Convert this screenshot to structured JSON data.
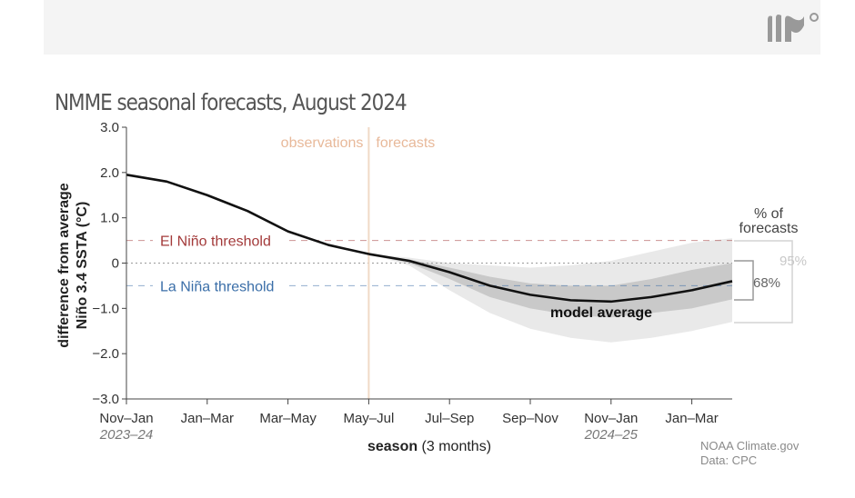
{
  "header": {
    "logo_name": "climate-gov-logo"
  },
  "credit": {
    "line1": "NOAA Climate.gov",
    "line2": "Data: CPC"
  },
  "chart_data": {
    "type": "line",
    "title": "NMME seasonal forecasts, August 2024",
    "ylabel_line1": "difference from average",
    "ylabel_line2": "Niño 3.4 SSTA (°C)",
    "xlabel_bold": "season",
    "xlabel_rest": " (3 months)",
    "ylim": [
      -3.0,
      3.0
    ],
    "yticks": [
      3.0,
      2.0,
      1.0,
      0,
      -1.0,
      -2.0,
      -3.0
    ],
    "ytick_labels": [
      "3.0",
      "2.0",
      "1.0",
      "0",
      "−1.0",
      "−2.0",
      "−3.0"
    ],
    "x_index_range": [
      0,
      15
    ],
    "xtick_index": [
      0,
      2,
      4,
      6,
      8,
      10,
      12,
      14
    ],
    "xtick_labels": [
      "Nov–Jan",
      "Jan–Mar",
      "Mar–May",
      "May–Jul",
      "Jul–Sep",
      "Sep–Nov",
      "Nov–Jan",
      "Jan–Mar"
    ],
    "year_labels": [
      {
        "index": 0,
        "text": "2023–24"
      },
      {
        "index": 12,
        "text": "2024–25"
      }
    ],
    "divider_index": 6,
    "observations_label": "observations",
    "forecasts_label": "forecasts",
    "thresholds": [
      {
        "name": "El Niño threshold",
        "value": 0.5,
        "color": "#a33a3a"
      },
      {
        "name": "La Niña threshold",
        "value": -0.5,
        "color": "#3a6ea8"
      }
    ],
    "series": [
      {
        "name": "observations",
        "x": [
          0,
          1,
          2,
          3,
          4,
          5,
          6
        ],
        "values": [
          1.95,
          1.8,
          1.5,
          1.15,
          0.7,
          0.4,
          0.2
        ]
      },
      {
        "name": "model average",
        "x": [
          6,
          7,
          8,
          9,
          10,
          11,
          12,
          13,
          14,
          15
        ],
        "values": [
          0.2,
          0.05,
          -0.2,
          -0.5,
          -0.7,
          -0.82,
          -0.85,
          -0.75,
          -0.6,
          -0.4
        ]
      }
    ],
    "bands": [
      {
        "name": "95%",
        "x": [
          6,
          7,
          8,
          9,
          10,
          11,
          12,
          13,
          14,
          15
        ],
        "upper": [
          0.2,
          0.12,
          0.0,
          -0.05,
          -0.1,
          -0.05,
          0.05,
          0.25,
          0.45,
          0.55
        ],
        "lower": [
          0.2,
          -0.05,
          -0.6,
          -1.1,
          -1.45,
          -1.65,
          -1.75,
          -1.65,
          -1.5,
          -1.3
        ]
      },
      {
        "name": "68%",
        "x": [
          6,
          7,
          8,
          9,
          10,
          11,
          12,
          13,
          14,
          15
        ],
        "upper": [
          0.2,
          0.08,
          -0.1,
          -0.3,
          -0.45,
          -0.5,
          -0.5,
          -0.35,
          -0.15,
          0.0
        ],
        "lower": [
          0.2,
          0.0,
          -0.35,
          -0.75,
          -1.0,
          -1.15,
          -1.2,
          -1.1,
          -1.0,
          -0.8
        ]
      }
    ],
    "model_average_label": "model average",
    "legend_title_line1": "% of",
    "legend_title_line2": "forecasts",
    "legend_items": [
      "95%",
      "68%"
    ],
    "colors": {
      "line": "#111111",
      "band95": "#e9e9e9",
      "band68": "#c9c9c9",
      "divider": "#f0d9c6",
      "divider_text": "#e8b99a",
      "axis": "#444444",
      "legend95_text": "#c8c8c8",
      "legend68_text": "#666666"
    }
  }
}
